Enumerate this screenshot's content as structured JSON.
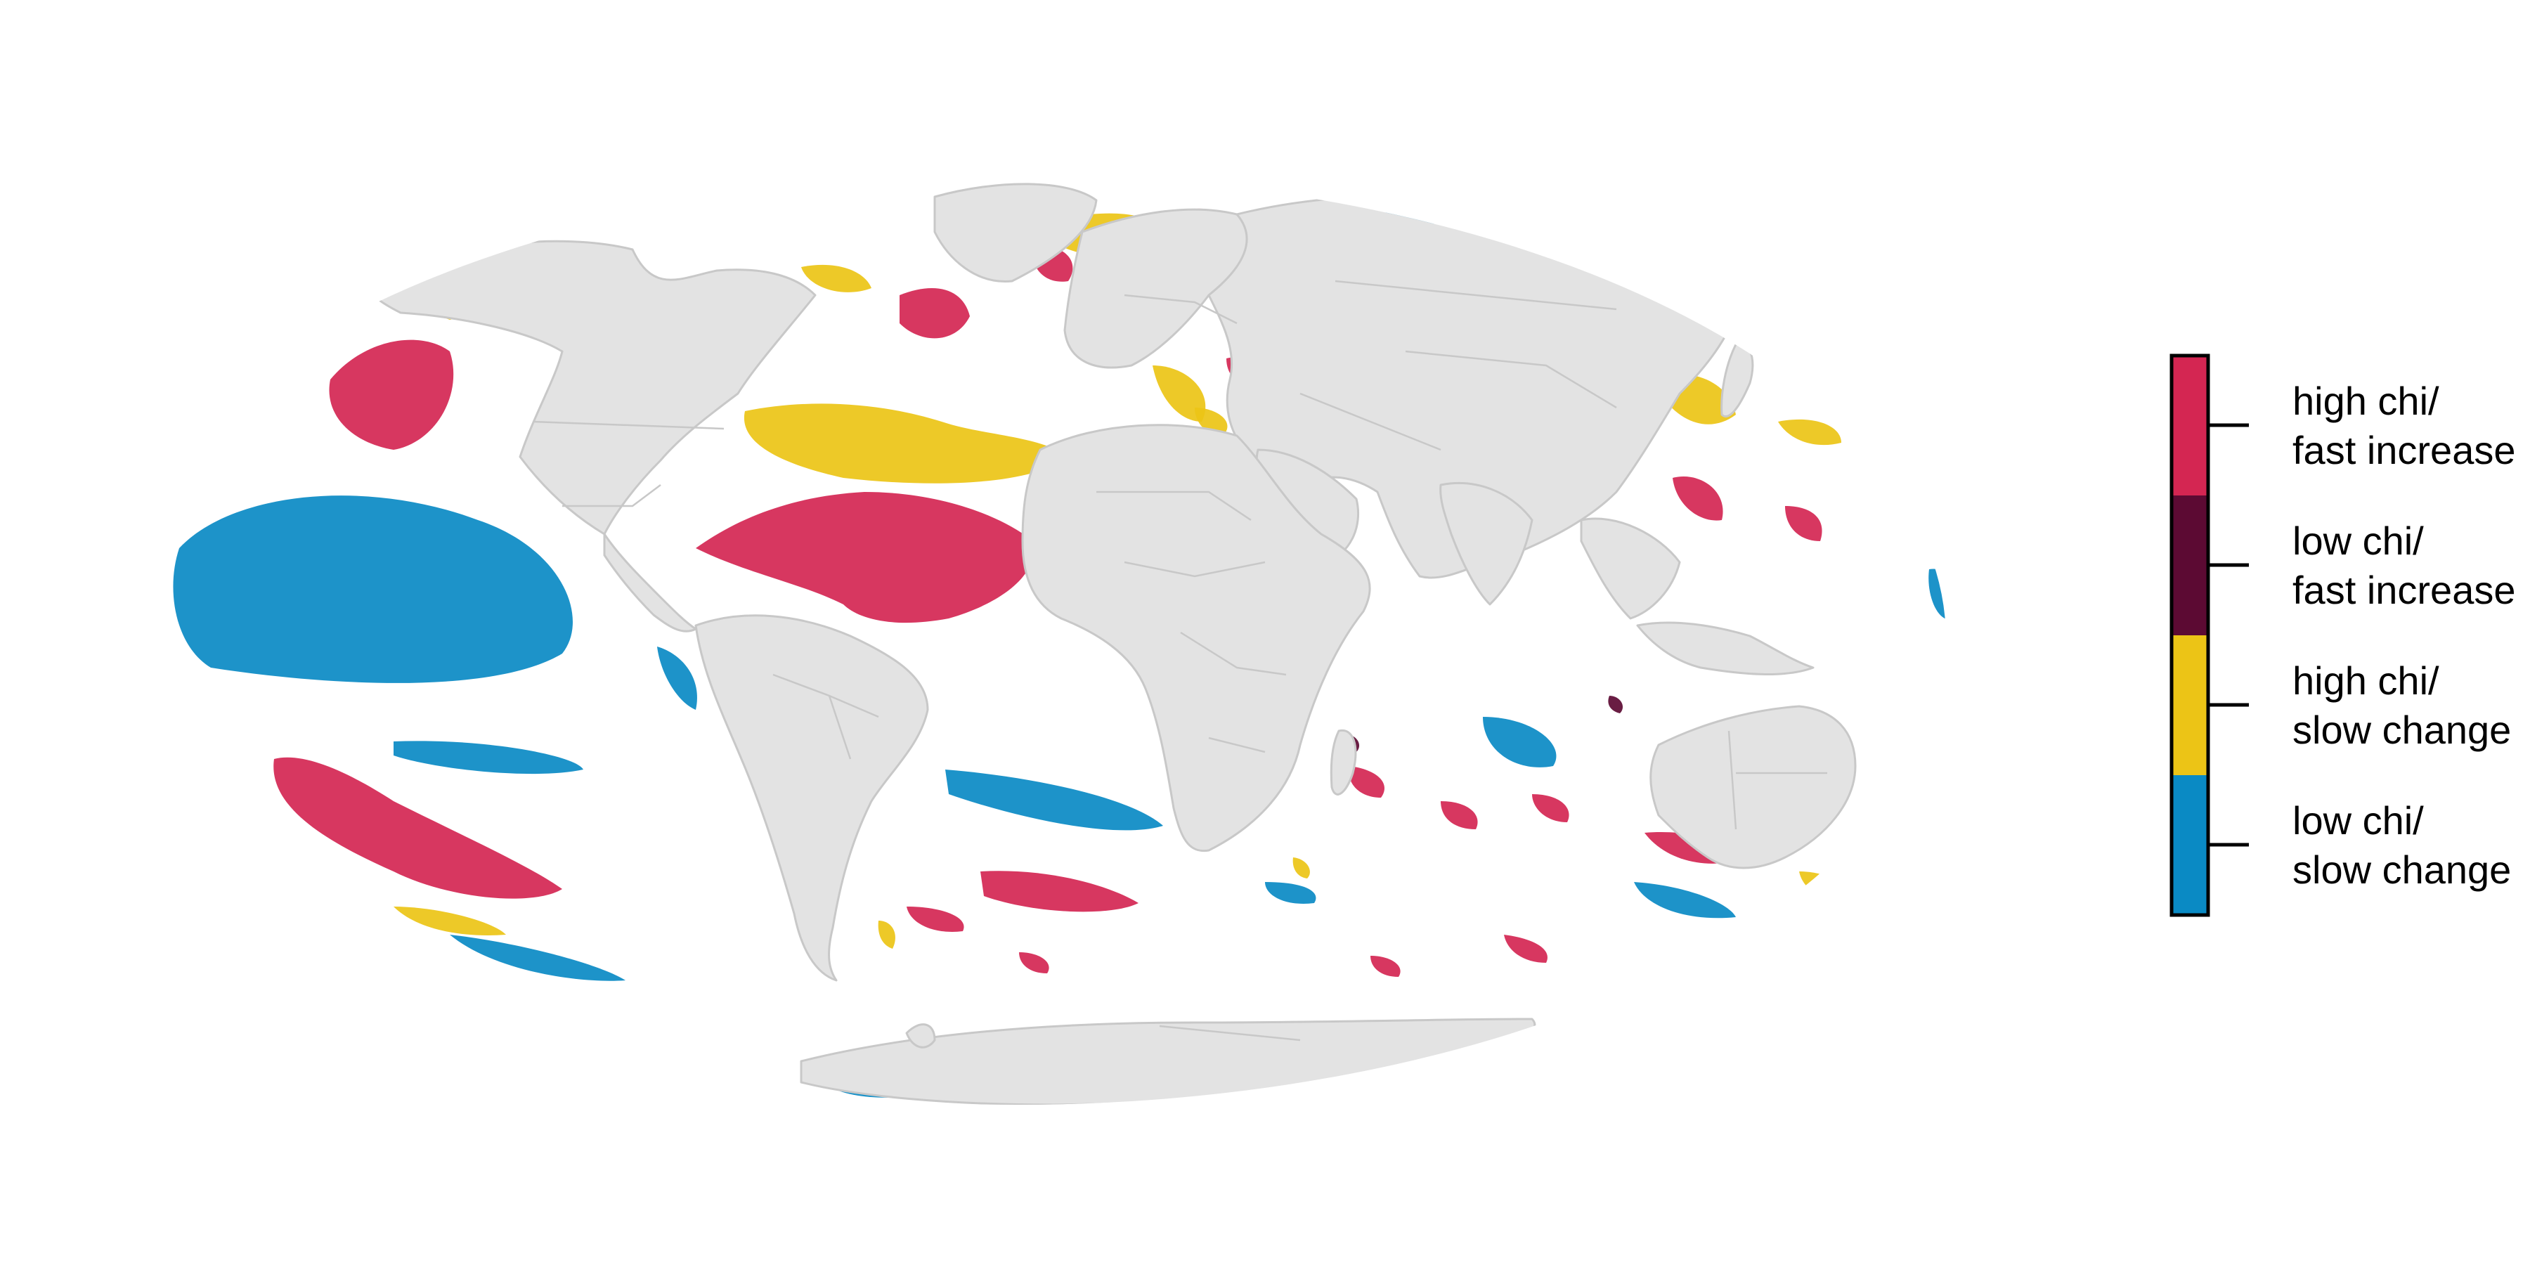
{
  "map": {
    "projection": "Mollweide",
    "land_color": "#e3e3e3",
    "border_color": "#c8c8c8",
    "background_color": "#ffffff"
  },
  "legend": {
    "title": "",
    "frame_color": "#000000",
    "classes": [
      {
        "line1": "high chi/",
        "line2": "fast increase",
        "color": "#d42652"
      },
      {
        "line1": "low chi/",
        "line2": "fast increase",
        "color": "#5c0a33"
      },
      {
        "line1": "high chi/",
        "line2": "slow change",
        "color": "#ecc416"
      },
      {
        "line1": "low chi/",
        "line2": "slow change",
        "color": "#0a8ac4"
      }
    ]
  },
  "ocean_categories": {
    "high_chi_fast_increase": "#d42652",
    "low_chi_fast_increase": "#5c0a33",
    "high_chi_slow_change": "#ecc416",
    "low_chi_slow_change": "#0a8ac4"
  }
}
